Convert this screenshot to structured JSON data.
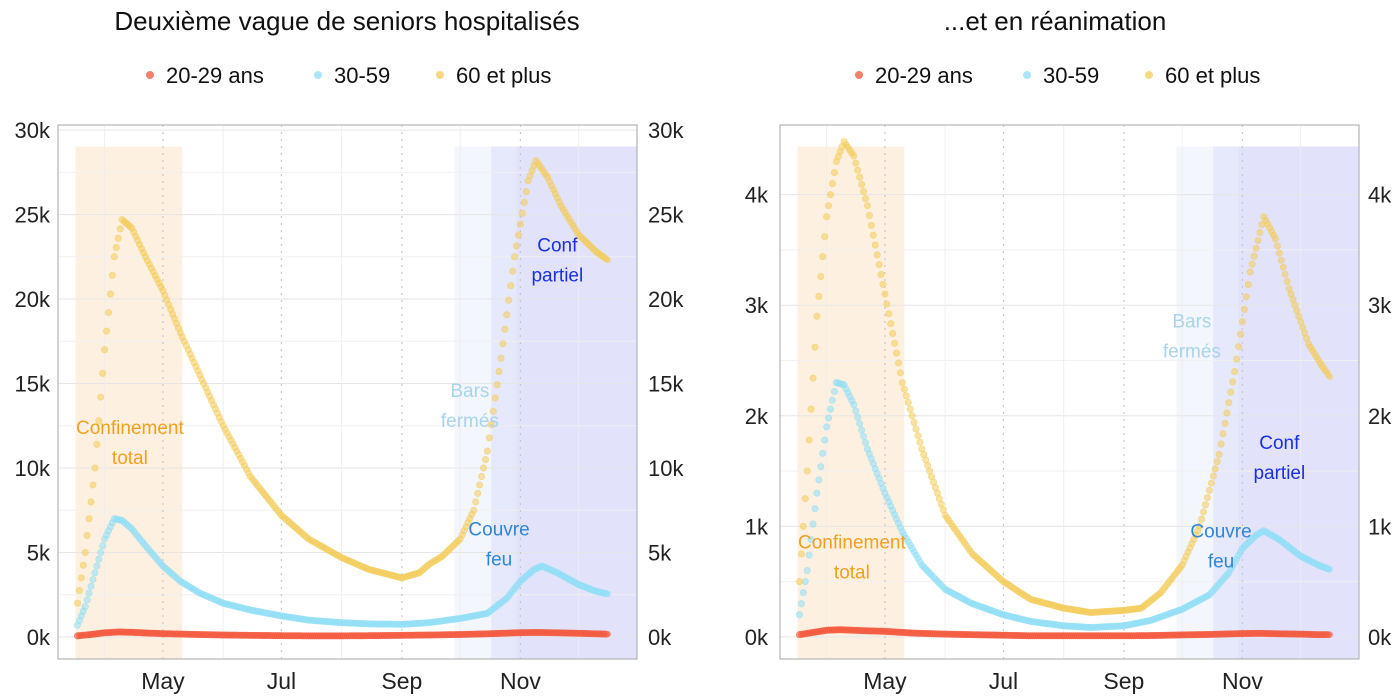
{
  "chart_data": [
    {
      "type": "scatter",
      "title": "Deuxième vague de seniors hospitalisés",
      "legend": {
        "position": "top",
        "entries": [
          "20-29 ans",
          "30-59",
          "60 et plus"
        ]
      },
      "x_tick_labels": [
        "May",
        "Jul",
        "Sep",
        "Nov"
      ],
      "x_tick_dates": [
        "2020-05-01",
        "2020-07-01",
        "2020-09-01",
        "2020-11-01"
      ],
      "xlim": [
        "2020-03-08",
        "2020-12-31"
      ],
      "y_tick_labels": [
        "0k",
        "5k",
        "10k",
        "15k",
        "20k",
        "25k",
        "30k"
      ],
      "y_ticks": [
        0,
        5000,
        10000,
        15000,
        20000,
        25000,
        30000
      ],
      "ylim": [
        -1300,
        30300
      ],
      "secondary_axis": true,
      "grid": true,
      "periods": [
        {
          "start": "2020-03-17",
          "end": "2020-05-11",
          "color": "#fdf0e0",
          "label": "Confinement total",
          "label_lines": [
            "Confinement",
            "total"
          ],
          "label_color": "#f0a020",
          "label_date": "2020-04-14",
          "label_y": 12000
        },
        {
          "start": "2020-09-28",
          "end": "2020-12-31",
          "color": "#f3f6fd",
          "label": "Bars fermés",
          "label_lines": [
            "Bars",
            "fermés"
          ],
          "label_color": "#a8d4ea",
          "label_date": "2020-10-06",
          "label_y": 14200
        },
        {
          "start": "2020-10-17",
          "end": "2020-12-31",
          "color": "#e6e8fb",
          "label": "Couvre feu",
          "label_lines": [
            "Couvre",
            "feu"
          ],
          "label_color": "#2f86d8",
          "label_date": "2020-10-21",
          "label_y": 6000
        },
        {
          "start": "2020-10-30",
          "end": "2020-12-31",
          "color": "#e2e2fb",
          "label": "Conf partiel",
          "label_lines": [
            "Conf",
            "partiel"
          ],
          "label_color": "#1a2fe0",
          "label_date": "2020-11-20",
          "label_y": 22800
        }
      ],
      "series": [
        {
          "name": "20-29 ans",
          "color": "#f4553a",
          "points": [
            [
              "2020-03-18",
              70
            ],
            [
              "2020-03-25",
              150
            ],
            [
              "2020-04-01",
              250
            ],
            [
              "2020-04-08",
              300
            ],
            [
              "2020-04-15",
              280
            ],
            [
              "2020-04-22",
              240
            ],
            [
              "2020-05-01",
              200
            ],
            [
              "2020-05-15",
              160
            ],
            [
              "2020-06-01",
              120
            ],
            [
              "2020-06-15",
              100
            ],
            [
              "2020-07-01",
              80
            ],
            [
              "2020-07-15",
              70
            ],
            [
              "2020-08-01",
              70
            ],
            [
              "2020-08-15",
              80
            ],
            [
              "2020-09-01",
              100
            ],
            [
              "2020-09-15",
              120
            ],
            [
              "2020-10-01",
              150
            ],
            [
              "2020-10-15",
              190
            ],
            [
              "2020-10-25",
              230
            ],
            [
              "2020-11-01",
              260
            ],
            [
              "2020-11-10",
              270
            ],
            [
              "2020-11-20",
              250
            ],
            [
              "2020-12-01",
              220
            ],
            [
              "2020-12-10",
              190
            ],
            [
              "2020-12-16",
              170
            ]
          ]
        },
        {
          "name": "30-59",
          "color": "#8fdef5",
          "points": [
            [
              "2020-03-18",
              700
            ],
            [
              "2020-03-22",
              1800
            ],
            [
              "2020-03-27",
              3800
            ],
            [
              "2020-04-01",
              5800
            ],
            [
              "2020-04-06",
              7000
            ],
            [
              "2020-04-10",
              6900
            ],
            [
              "2020-04-15",
              6400
            ],
            [
              "2020-04-22",
              5400
            ],
            [
              "2020-05-01",
              4200
            ],
            [
              "2020-05-10",
              3300
            ],
            [
              "2020-05-20",
              2600
            ],
            [
              "2020-06-01",
              2000
            ],
            [
              "2020-06-15",
              1600
            ],
            [
              "2020-07-01",
              1250
            ],
            [
              "2020-07-15",
              1000
            ],
            [
              "2020-08-01",
              850
            ],
            [
              "2020-08-15",
              780
            ],
            [
              "2020-09-01",
              750
            ],
            [
              "2020-09-15",
              850
            ],
            [
              "2020-10-01",
              1100
            ],
            [
              "2020-10-15",
              1400
            ],
            [
              "2020-10-25",
              2300
            ],
            [
              "2020-11-01",
              3300
            ],
            [
              "2020-11-08",
              4000
            ],
            [
              "2020-11-12",
              4200
            ],
            [
              "2020-11-20",
              3800
            ],
            [
              "2020-12-01",
              3100
            ],
            [
              "2020-12-10",
              2700
            ],
            [
              "2020-12-16",
              2550
            ]
          ]
        },
        {
          "name": "60 et plus",
          "color": "#f2cc5a",
          "points": [
            [
              "2020-03-18",
              2000
            ],
            [
              "2020-03-22",
              5000
            ],
            [
              "2020-03-27",
              10000
            ],
            [
              "2020-04-01",
              17000
            ],
            [
              "2020-04-06",
              22500
            ],
            [
              "2020-04-10",
              24700
            ],
            [
              "2020-04-15",
              24200
            ],
            [
              "2020-04-22",
              22500
            ],
            [
              "2020-05-01",
              20500
            ],
            [
              "2020-05-10",
              18000
            ],
            [
              "2020-05-20",
              15500
            ],
            [
              "2020-06-01",
              12500
            ],
            [
              "2020-06-15",
              9500
            ],
            [
              "2020-07-01",
              7200
            ],
            [
              "2020-07-15",
              5800
            ],
            [
              "2020-08-01",
              4700
            ],
            [
              "2020-08-15",
              4000
            ],
            [
              "2020-09-01",
              3500
            ],
            [
              "2020-09-10",
              3800
            ],
            [
              "2020-09-15",
              4300
            ],
            [
              "2020-09-22",
              4800
            ],
            [
              "2020-10-01",
              5800
            ],
            [
              "2020-10-08",
              7500
            ],
            [
              "2020-10-15",
              11000
            ],
            [
              "2020-10-22",
              16500
            ],
            [
              "2020-10-29",
              22500
            ],
            [
              "2020-11-05",
              27000
            ],
            [
              "2020-11-09",
              28200
            ],
            [
              "2020-11-15",
              27200
            ],
            [
              "2020-11-22",
              25500
            ],
            [
              "2020-12-01",
              23800
            ],
            [
              "2020-12-10",
              22800
            ],
            [
              "2020-12-16",
              22300
            ]
          ]
        }
      ]
    },
    {
      "type": "scatter",
      "title": "...et en réanimation",
      "legend": {
        "position": "top",
        "entries": [
          "20-29 ans",
          "30-59",
          "60 et plus"
        ]
      },
      "x_tick_labels": [
        "May",
        "Jul",
        "Sep",
        "Nov"
      ],
      "x_tick_dates": [
        "2020-05-01",
        "2020-07-01",
        "2020-09-01",
        "2020-11-01"
      ],
      "xlim": [
        "2020-03-08",
        "2020-12-31"
      ],
      "y_tick_labels": [
        "0k",
        "1k",
        "2k",
        "3k",
        "4k"
      ],
      "y_ticks": [
        0,
        1000,
        2000,
        3000,
        4000
      ],
      "ylim": [
        -200,
        4630
      ],
      "secondary_axis": true,
      "grid": true,
      "periods": [
        {
          "start": "2020-03-17",
          "end": "2020-05-11",
          "color": "#fdf0e0",
          "label": "Confinement total",
          "label_lines": [
            "Confinement",
            "total"
          ],
          "label_color": "#f0a020",
          "label_date": "2020-04-14",
          "label_y": 800
        },
        {
          "start": "2020-09-28",
          "end": "2020-12-31",
          "color": "#f3f6fd",
          "label": "Bars fermés",
          "label_lines": [
            "Bars",
            "fermés"
          ],
          "label_color": "#a8d4ea",
          "label_date": "2020-10-06",
          "label_y": 2800
        },
        {
          "start": "2020-10-17",
          "end": "2020-12-31",
          "color": "#e6e8fb",
          "label": "Couvre feu",
          "label_lines": [
            "Couvre",
            "feu"
          ],
          "label_color": "#2f86d8",
          "label_date": "2020-10-21",
          "label_y": 900
        },
        {
          "start": "2020-10-30",
          "end": "2020-12-31",
          "color": "#e2e2fb",
          "label": "Conf partiel",
          "label_lines": [
            "Conf",
            "partiel"
          ],
          "label_color": "#1a2fe0",
          "label_date": "2020-11-20",
          "label_y": 1700
        }
      ],
      "series": [
        {
          "name": "20-29 ans",
          "color": "#f4553a",
          "points": [
            [
              "2020-03-18",
              20
            ],
            [
              "2020-03-25",
              40
            ],
            [
              "2020-04-01",
              60
            ],
            [
              "2020-04-08",
              65
            ],
            [
              "2020-04-15",
              60
            ],
            [
              "2020-04-22",
              55
            ],
            [
              "2020-05-01",
              50
            ],
            [
              "2020-05-15",
              35
            ],
            [
              "2020-06-01",
              25
            ],
            [
              "2020-06-15",
              20
            ],
            [
              "2020-07-01",
              15
            ],
            [
              "2020-07-15",
              10
            ],
            [
              "2020-08-01",
              10
            ],
            [
              "2020-08-15",
              10
            ],
            [
              "2020-09-01",
              10
            ],
            [
              "2020-09-15",
              12
            ],
            [
              "2020-10-01",
              18
            ],
            [
              "2020-10-15",
              22
            ],
            [
              "2020-11-01",
              30
            ],
            [
              "2020-11-10",
              32
            ],
            [
              "2020-11-20",
              28
            ],
            [
              "2020-12-01",
              25
            ],
            [
              "2020-12-10",
              20
            ],
            [
              "2020-12-16",
              20
            ]
          ]
        },
        {
          "name": "30-59",
          "color": "#8fdef5",
          "points": [
            [
              "2020-03-18",
              200
            ],
            [
              "2020-03-22",
              600
            ],
            [
              "2020-03-27",
              1300
            ],
            [
              "2020-04-01",
              1900
            ],
            [
              "2020-04-06",
              2300
            ],
            [
              "2020-04-10",
              2280
            ],
            [
              "2020-04-15",
              2100
            ],
            [
              "2020-04-22",
              1700
            ],
            [
              "2020-05-01",
              1300
            ],
            [
              "2020-05-10",
              950
            ],
            [
              "2020-05-20",
              650
            ],
            [
              "2020-06-01",
              430
            ],
            [
              "2020-06-15",
              300
            ],
            [
              "2020-07-01",
              200
            ],
            [
              "2020-07-15",
              140
            ],
            [
              "2020-08-01",
              100
            ],
            [
              "2020-08-15",
              85
            ],
            [
              "2020-09-01",
              100
            ],
            [
              "2020-09-15",
              150
            ],
            [
              "2020-10-01",
              250
            ],
            [
              "2020-10-15",
              380
            ],
            [
              "2020-10-25",
              580
            ],
            [
              "2020-11-01",
              800
            ],
            [
              "2020-11-08",
              920
            ],
            [
              "2020-11-12",
              960
            ],
            [
              "2020-11-20",
              880
            ],
            [
              "2020-12-01",
              730
            ],
            [
              "2020-12-10",
              650
            ],
            [
              "2020-12-16",
              610
            ]
          ]
        },
        {
          "name": "60 et plus",
          "color": "#f2cc5a",
          "points": [
            [
              "2020-03-18",
              500
            ],
            [
              "2020-03-22",
              1500
            ],
            [
              "2020-03-27",
              2900
            ],
            [
              "2020-04-01",
              3800
            ],
            [
              "2020-04-06",
              4300
            ],
            [
              "2020-04-10",
              4480
            ],
            [
              "2020-04-15",
              4350
            ],
            [
              "2020-04-22",
              3900
            ],
            [
              "2020-05-01",
              3100
            ],
            [
              "2020-05-10",
              2300
            ],
            [
              "2020-05-20",
              1700
            ],
            [
              "2020-06-01",
              1100
            ],
            [
              "2020-06-15",
              750
            ],
            [
              "2020-07-01",
              500
            ],
            [
              "2020-07-15",
              340
            ],
            [
              "2020-08-01",
              260
            ],
            [
              "2020-08-15",
              220
            ],
            [
              "2020-09-01",
              240
            ],
            [
              "2020-09-10",
              260
            ],
            [
              "2020-09-20",
              400
            ],
            [
              "2020-10-01",
              650
            ],
            [
              "2020-10-10",
              1000
            ],
            [
              "2020-10-20",
              1650
            ],
            [
              "2020-10-28",
              2400
            ],
            [
              "2020-11-05",
              3300
            ],
            [
              "2020-11-12",
              3800
            ],
            [
              "2020-11-18",
              3600
            ],
            [
              "2020-11-25",
              3150
            ],
            [
              "2020-12-05",
              2650
            ],
            [
              "2020-12-12",
              2450
            ],
            [
              "2020-12-16",
              2350
            ]
          ]
        }
      ]
    }
  ]
}
